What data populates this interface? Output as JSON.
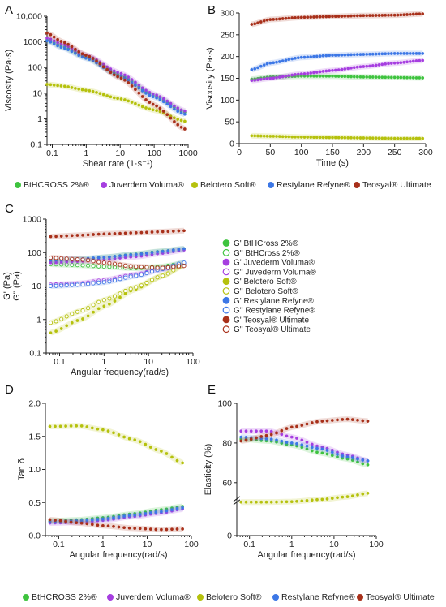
{
  "series_colors": {
    "btcross": "#3ec33e",
    "juvederm": "#a63ee0",
    "belotero": "#b5c10d",
    "restylane": "#3c77e6",
    "teosyal": "#a8301a"
  },
  "legend_top": {
    "items": [
      {
        "label": "BtHCROSS 2%®",
        "color": "#3ec33e"
      },
      {
        "label": "Juverdem Voluma®",
        "color": "#a63ee0"
      },
      {
        "label": "Belotero Soft®",
        "color": "#b5c10d"
      },
      {
        "label": "Restylane Refyne®",
        "color": "#3c77e6"
      },
      {
        "label": "Teosyal® Ultimate",
        "color": "#a8301a"
      }
    ]
  },
  "legend_bottom": {
    "items": [
      {
        "label": "BtHCROSS 2%®",
        "color": "#3ec33e"
      },
      {
        "label": "Juverdem Voluma®",
        "color": "#a63ee0"
      },
      {
        "label": "Belotero Soft®",
        "color": "#b5c10d"
      },
      {
        "label": "Restylane Refyne®",
        "color": "#3c77e6"
      },
      {
        "label": "Teosyal® Ultimate",
        "color": "#a8301a"
      }
    ]
  },
  "chart_data": [
    {
      "panel": "A",
      "type": "line",
      "xlabel": "Shear rate (1·s⁻¹)",
      "ylabel": "Viscosity (Pa·s)",
      "xscale": "log",
      "yscale": "log",
      "xlim": [
        0.07,
        1000
      ],
      "ylim": [
        0.1,
        10000
      ],
      "xticks": [
        {
          "v": 0.1,
          "label": "0.1"
        },
        {
          "v": 1,
          "label": "1"
        },
        {
          "v": 10,
          "label": "10"
        },
        {
          "v": 100,
          "label": "100"
        },
        {
          "v": 1000,
          "label": "1000"
        }
      ],
      "yticks": [
        {
          "v": 0.1,
          "label": "0.1"
        },
        {
          "v": 1,
          "label": "1"
        },
        {
          "v": 10,
          "label": "10"
        },
        {
          "v": 100,
          "label": "100"
        },
        {
          "v": 1000,
          "label": "1000"
        },
        {
          "v": 10000,
          "label": "10,000"
        }
      ],
      "series": [
        {
          "key": "btcross",
          "x": [
            0.07,
            0.2,
            1,
            10,
            100,
            800
          ],
          "y": [
            1200,
            650,
            250,
            50,
            8,
            1.8
          ]
        },
        {
          "key": "juvederm",
          "x": [
            0.07,
            0.2,
            1,
            10,
            100,
            800
          ],
          "y": [
            1400,
            800,
            300,
            60,
            9,
            2
          ]
        },
        {
          "key": "belotero",
          "x": [
            0.07,
            0.2,
            1,
            10,
            100,
            800
          ],
          "y": [
            22,
            19,
            13,
            6,
            2.2,
            0.8
          ]
        },
        {
          "key": "restylane",
          "x": [
            0.07,
            0.2,
            1,
            10,
            100,
            800
          ],
          "y": [
            1100,
            600,
            230,
            45,
            7,
            1.5
          ]
        },
        {
          "key": "teosyal",
          "x": [
            0.07,
            0.2,
            1,
            10,
            100,
            800
          ],
          "y": [
            2200,
            1000,
            300,
            40,
            3.5,
            0.4
          ]
        }
      ]
    },
    {
      "panel": "B",
      "type": "line",
      "xlabel": "Time (s)",
      "ylabel": "Viscosity (Pa·s)",
      "xscale": "linear",
      "yscale": "linear",
      "xlim": [
        0,
        300
      ],
      "ylim": [
        0,
        300
      ],
      "xticks": [
        {
          "v": 0,
          "label": "0"
        },
        {
          "v": 50,
          "label": "50"
        },
        {
          "v": 100,
          "label": "100"
        },
        {
          "v": 150,
          "label": "150"
        },
        {
          "v": 200,
          "label": "200"
        },
        {
          "v": 250,
          "label": "250"
        },
        {
          "v": 300,
          "label": "300"
        }
      ],
      "yticks": [
        {
          "v": 0,
          "label": "0"
        },
        {
          "v": 50,
          "label": "50"
        },
        {
          "v": 100,
          "label": "100"
        },
        {
          "v": 150,
          "label": "150"
        },
        {
          "v": 200,
          "label": "200"
        },
        {
          "v": 250,
          "label": "250"
        },
        {
          "v": 300,
          "label": "300"
        }
      ],
      "series": [
        {
          "key": "btcross",
          "x": [
            20,
            50,
            100,
            150,
            200,
            250,
            295
          ],
          "y": [
            148,
            153,
            155,
            155,
            153,
            152,
            151
          ]
        },
        {
          "key": "juvederm",
          "x": [
            20,
            50,
            100,
            150,
            200,
            250,
            295
          ],
          "y": [
            145,
            150,
            160,
            168,
            177,
            185,
            191
          ]
        },
        {
          "key": "belotero",
          "x": [
            20,
            50,
            100,
            150,
            200,
            250,
            295
          ],
          "y": [
            18,
            17,
            15,
            14,
            13,
            12,
            12
          ]
        },
        {
          "key": "restylane",
          "x": [
            20,
            50,
            100,
            150,
            200,
            250,
            295
          ],
          "y": [
            170,
            185,
            198,
            203,
            205,
            207,
            207
          ]
        },
        {
          "key": "teosyal",
          "x": [
            20,
            50,
            100,
            150,
            200,
            250,
            295
          ],
          "y": [
            274,
            285,
            290,
            292,
            294,
            295,
            298
          ]
        }
      ]
    },
    {
      "panel": "C",
      "type": "scatter",
      "xlabel": "Angular frequency(rad/s)",
      "ylabel": "G' (Pa)",
      "ylabel2": "G'' (Pa)",
      "xscale": "log",
      "yscale": "log",
      "xlim": [
        0.05,
        100
      ],
      "ylim": [
        0.1,
        1000
      ],
      "xticks": [
        {
          "v": 0.1,
          "label": "0.1"
        },
        {
          "v": 1,
          "label": "1"
        },
        {
          "v": 10,
          "label": "10"
        },
        {
          "v": 100,
          "label": "100"
        }
      ],
      "yticks": [
        {
          "v": 0.1,
          "label": "0.1"
        },
        {
          "v": 1,
          "label": "1"
        },
        {
          "v": 10,
          "label": "10"
        },
        {
          "v": 100,
          "label": "100"
        },
        {
          "v": 1000,
          "label": "1000"
        }
      ],
      "legend": [
        {
          "label": "G' BtHCross 2%®",
          "key": "btcross",
          "filled": true
        },
        {
          "label": "G'' BtHCross 2%®",
          "key": "btcross",
          "filled": false
        },
        {
          "label": "G' Juvederm Voluma®",
          "key": "juvederm",
          "filled": true
        },
        {
          "label": "G'' Juvederm Voluma®",
          "key": "juvederm",
          "filled": false
        },
        {
          "label": "G' Belotero Soft®",
          "key": "belotero",
          "filled": true
        },
        {
          "label": "G'' Belotero Soft®",
          "key": "belotero",
          "filled": false
        },
        {
          "label": "G' Restylane Refyne®",
          "key": "restylane",
          "filled": true
        },
        {
          "label": "G'' Restylane Refyne®",
          "key": "restylane",
          "filled": false
        },
        {
          "label": "G' Teosyal® Ultimate",
          "key": "teosyal",
          "filled": true
        },
        {
          "label": "G'' Teosyal® Ultimate",
          "key": "teosyal",
          "filled": false
        }
      ],
      "series": [
        {
          "key": "btcross",
          "filled": true,
          "x": [
            0.063,
            0.3,
            1,
            5,
            20,
            63
          ],
          "y": [
            55,
            62,
            72,
            90,
            110,
            130
          ]
        },
        {
          "key": "btcross",
          "filled": false,
          "x": [
            0.063,
            0.3,
            1,
            5,
            20,
            63
          ],
          "y": [
            45,
            42,
            38,
            34,
            38,
            48
          ]
        },
        {
          "key": "juvederm",
          "filled": true,
          "x": [
            0.063,
            0.3,
            1,
            5,
            20,
            63
          ],
          "y": [
            50,
            55,
            62,
            75,
            95,
            120
          ]
        },
        {
          "key": "juvederm",
          "filled": false,
          "x": [
            0.063,
            0.3,
            1,
            5,
            20,
            63
          ],
          "y": [
            11,
            12,
            15,
            22,
            32,
            45
          ]
        },
        {
          "key": "belotero",
          "filled": true,
          "x": [
            0.063,
            0.3,
            1,
            5,
            20,
            63
          ],
          "y": [
            0.4,
            1.0,
            2.5,
            8,
            20,
            45
          ]
        },
        {
          "key": "belotero",
          "filled": false,
          "x": [
            0.063,
            0.3,
            1,
            5,
            20,
            63
          ],
          "y": [
            0.8,
            1.8,
            3.8,
            9,
            20,
            42
          ]
        },
        {
          "key": "restylane",
          "filled": true,
          "x": [
            0.063,
            0.3,
            1,
            5,
            20,
            63
          ],
          "y": [
            60,
            65,
            72,
            88,
            108,
            130
          ]
        },
        {
          "key": "restylane",
          "filled": false,
          "x": [
            0.063,
            0.3,
            1,
            5,
            20,
            63
          ],
          "y": [
            10,
            11,
            13,
            20,
            32,
            50
          ]
        },
        {
          "key": "teosyal",
          "filled": true,
          "x": [
            0.063,
            0.3,
            1,
            5,
            20,
            63
          ],
          "y": [
            300,
            330,
            360,
            390,
            420,
            450
          ]
        },
        {
          "key": "teosyal",
          "filled": false,
          "x": [
            0.063,
            0.3,
            1,
            5,
            20,
            63
          ],
          "y": [
            70,
            62,
            50,
            38,
            35,
            40
          ]
        }
      ]
    },
    {
      "panel": "D",
      "type": "line",
      "xlabel": "Angular frequency(rad/s)",
      "ylabel": "Tan δ",
      "xscale": "log",
      "yscale": "linear",
      "xlim": [
        0.05,
        100
      ],
      "ylim": [
        0,
        2
      ],
      "xticks": [
        {
          "v": 0.1,
          "label": "0.1"
        },
        {
          "v": 1,
          "label": "1"
        },
        {
          "v": 10,
          "label": "10"
        },
        {
          "v": 100,
          "label": "100"
        }
      ],
      "yticks": [
        {
          "v": 0,
          "label": "0.0"
        },
        {
          "v": 0.5,
          "label": "0.5"
        },
        {
          "v": 1.0,
          "label": "1.0"
        },
        {
          "v": 1.5,
          "label": "1.5"
        },
        {
          "v": 2.0,
          "label": "2.0"
        }
      ],
      "series": [
        {
          "key": "btcross",
          "x": [
            0.063,
            0.3,
            1,
            5,
            20,
            63
          ],
          "y": [
            0.22,
            0.24,
            0.27,
            0.33,
            0.39,
            0.44
          ]
        },
        {
          "key": "juvederm",
          "x": [
            0.063,
            0.3,
            1,
            5,
            20,
            63
          ],
          "y": [
            0.19,
            0.2,
            0.23,
            0.29,
            0.34,
            0.4
          ]
        },
        {
          "key": "belotero",
          "x": [
            0.063,
            0.3,
            1,
            5,
            20,
            63
          ],
          "y": [
            1.65,
            1.66,
            1.6,
            1.45,
            1.28,
            1.1
          ]
        },
        {
          "key": "restylane",
          "x": [
            0.063,
            0.3,
            1,
            5,
            20,
            63
          ],
          "y": [
            0.21,
            0.22,
            0.25,
            0.31,
            0.36,
            0.42
          ]
        },
        {
          "key": "teosyal",
          "x": [
            0.063,
            0.3,
            1,
            5,
            20,
            63
          ],
          "y": [
            0.24,
            0.19,
            0.15,
            0.11,
            0.09,
            0.1
          ]
        }
      ]
    },
    {
      "panel": "E",
      "type": "line",
      "xlabel": "Angular frequency(rad/s)",
      "ylabel": "Elasticity (%)",
      "xscale": "log",
      "yscale": "linear",
      "xlim": [
        0.05,
        100
      ],
      "ylim": [
        0,
        100
      ],
      "xticks": [
        {
          "v": 0.1,
          "label": "0.1"
        },
        {
          "v": 1,
          "label": "1"
        },
        {
          "v": 10,
          "label": "10"
        },
        {
          "v": 100,
          "label": "100"
        }
      ],
      "yticks": [
        {
          "v": 0,
          "label": "0"
        },
        {
          "v": 60,
          "label": "60"
        },
        {
          "v": 80,
          "label": "80"
        },
        {
          "v": 100,
          "label": "100"
        }
      ],
      "yscale_note": "break",
      "series": [
        {
          "key": "btcross",
          "x": [
            0.063,
            0.3,
            1,
            5,
            20,
            63
          ],
          "y": [
            82,
            81,
            79,
            75,
            72,
            69
          ]
        },
        {
          "key": "juvederm",
          "x": [
            0.063,
            0.3,
            1,
            5,
            20,
            63
          ],
          "y": [
            86,
            86,
            83,
            78,
            74,
            71
          ]
        },
        {
          "key": "belotero",
          "x": [
            0.063,
            0.3,
            1,
            5,
            20,
            63
          ],
          "y": [
            38,
            38,
            38.5,
            41,
            44,
            48
          ]
        },
        {
          "key": "restylane",
          "x": [
            0.063,
            0.3,
            1,
            5,
            20,
            63
          ],
          "y": [
            83,
            82,
            80,
            77,
            73,
            71
          ]
        },
        {
          "key": "teosyal",
          "x": [
            0.063,
            0.3,
            1,
            5,
            20,
            63
          ],
          "y": [
            81,
            84,
            88,
            91,
            92,
            91
          ]
        }
      ]
    }
  ]
}
